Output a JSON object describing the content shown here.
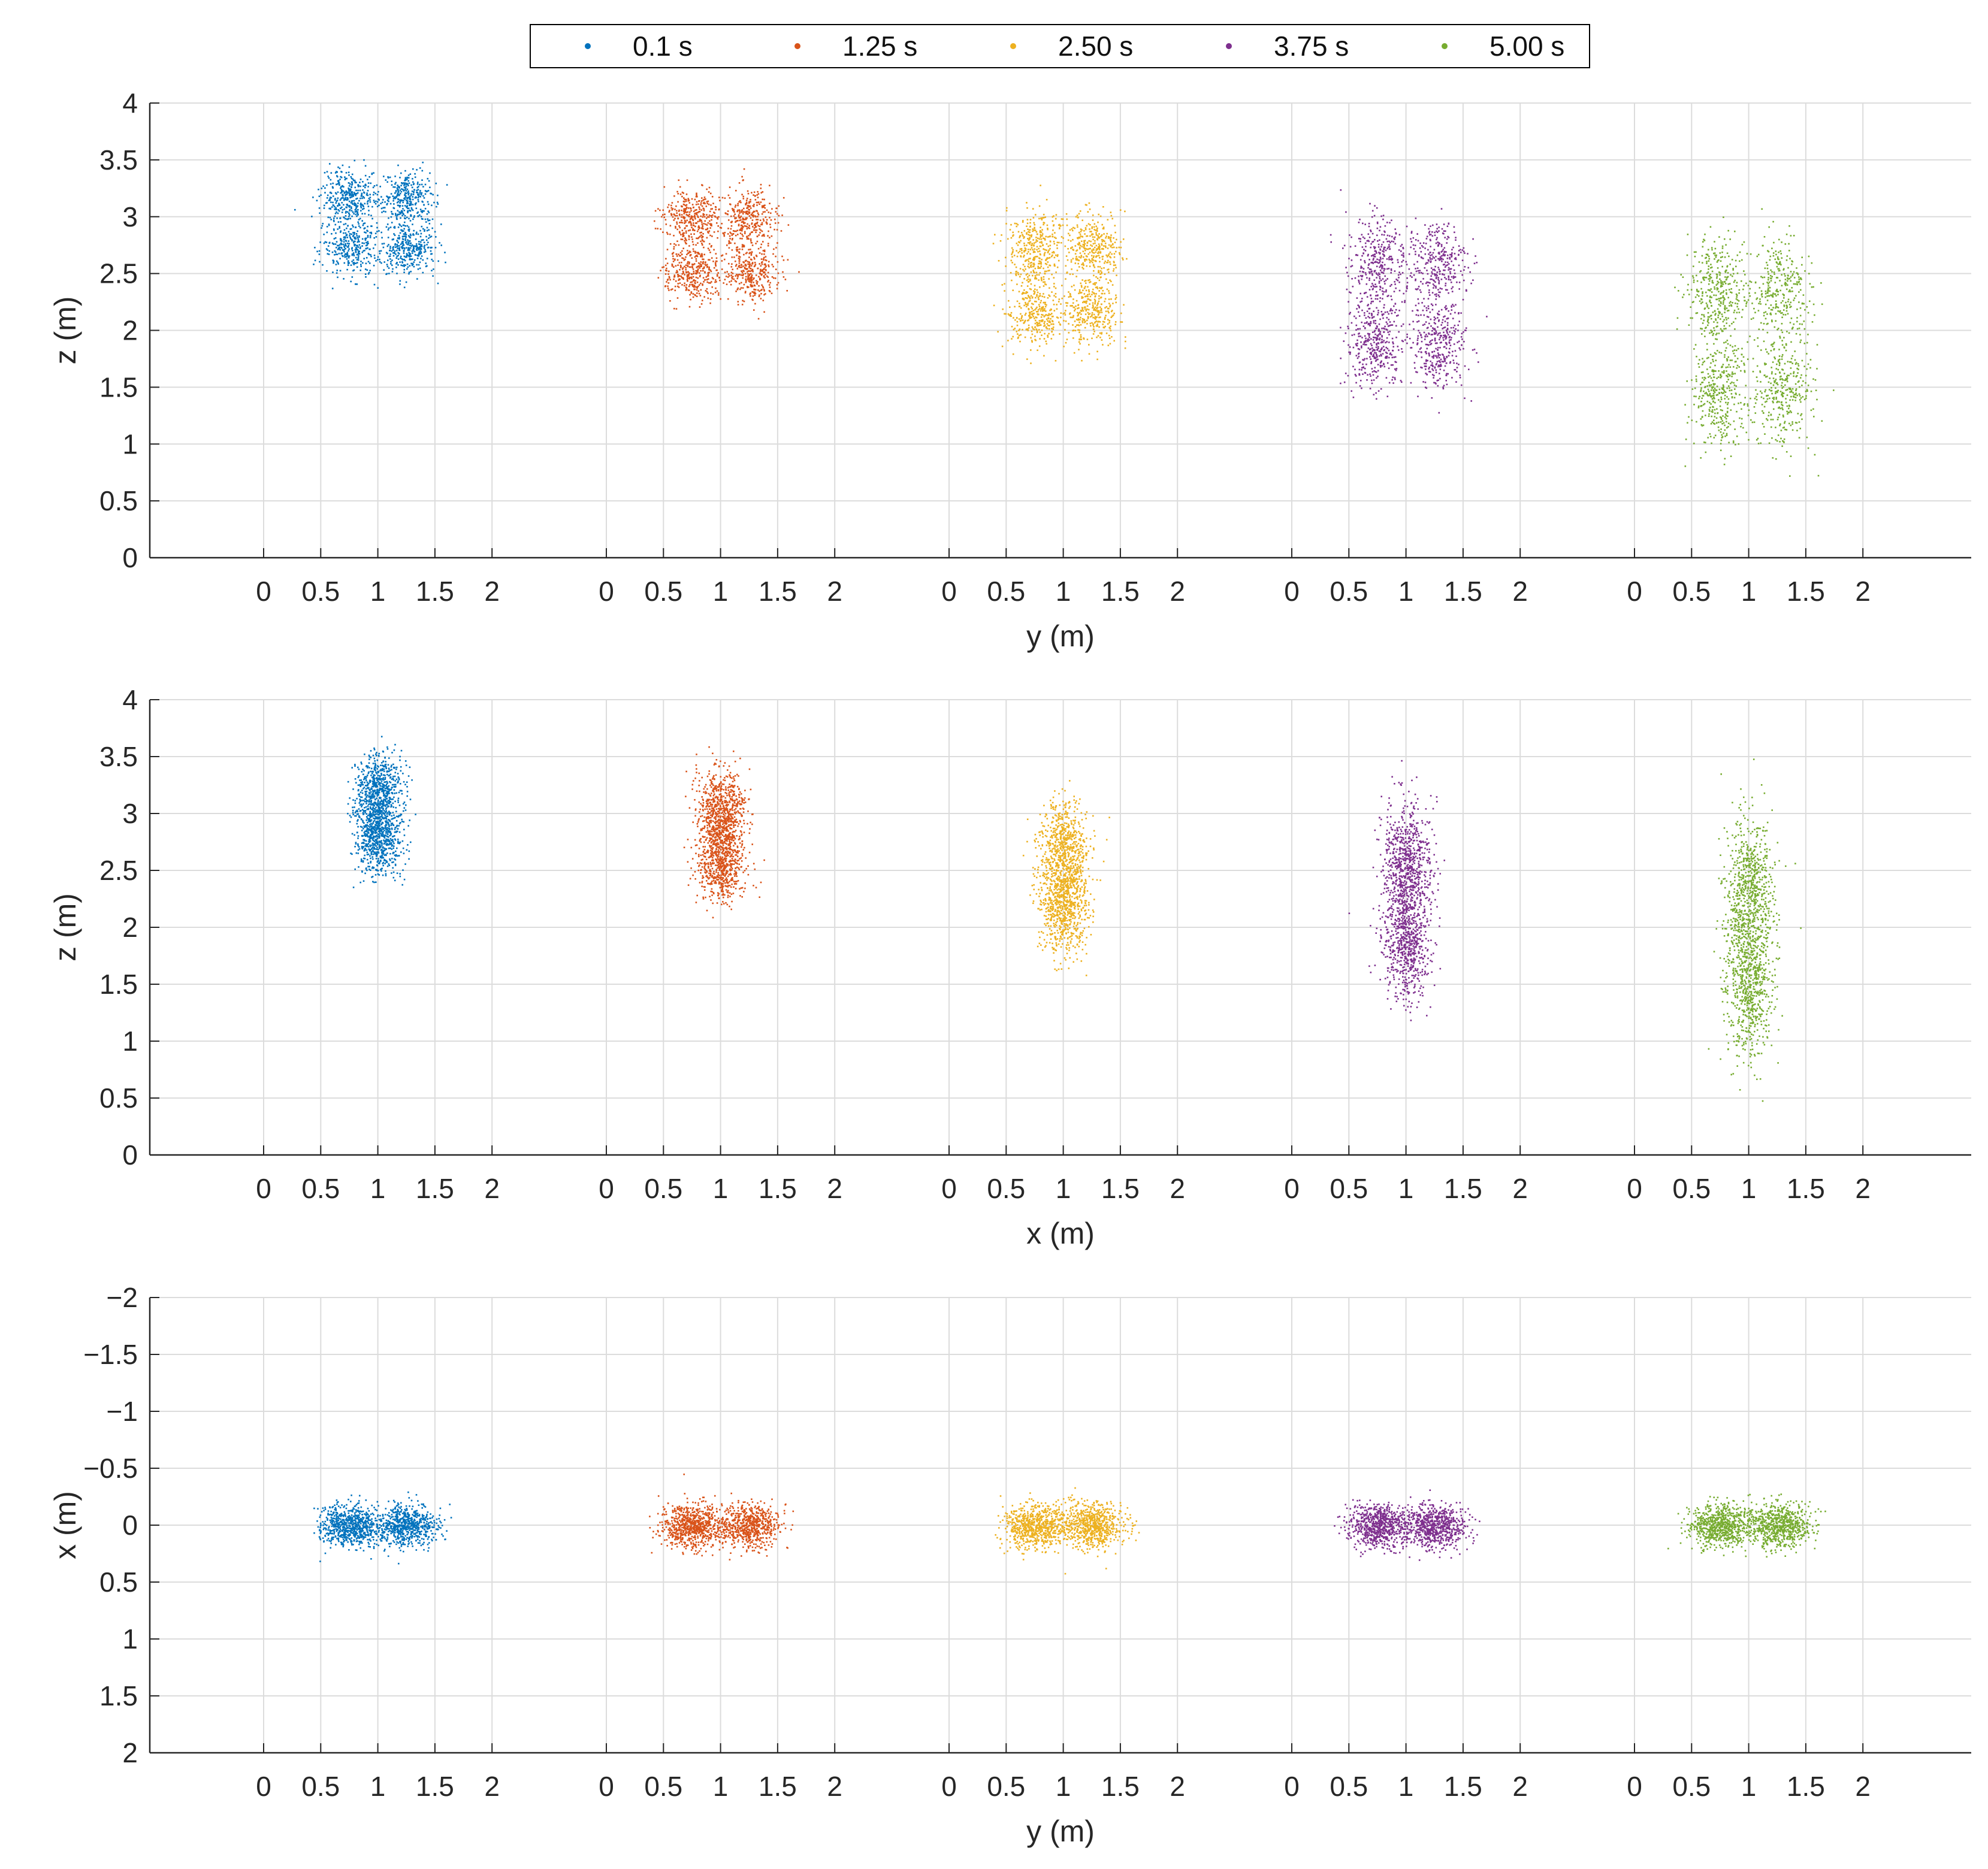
{
  "legend": {
    "entries": [
      {
        "label": "0.1 s",
        "color": "#0072BD"
      },
      {
        "label": "1.25 s",
        "color": "#D95319"
      },
      {
        "label": "2.50 s",
        "color": "#EDB120"
      },
      {
        "label": "3.75 s",
        "color": "#7E2F8E"
      },
      {
        "label": "5.00 s",
        "color": "#77AC30"
      }
    ]
  },
  "chart_data": [
    {
      "type": "scatter",
      "title": "",
      "xlabel": "y (m)",
      "ylabel": "z (m)",
      "grid": true,
      "group_xticks": [
        "0",
        "0.5",
        "1",
        "1.5",
        "2"
      ],
      "yticks": [
        "0",
        "0.5",
        "1",
        "1.5",
        "2",
        "2.5",
        "3",
        "3.5",
        "4"
      ],
      "ylim": [
        0,
        4
      ],
      "y_reversed": false,
      "series": [
        {
          "name": "0.1 s",
          "center_h": 1.0,
          "center_v": 2.95,
          "spread_h": 0.6,
          "spread_v": 0.55,
          "pattern": "quad"
        },
        {
          "name": "1.25 s",
          "center_h": 1.0,
          "center_v": 2.75,
          "spread_h": 0.6,
          "spread_v": 0.6,
          "pattern": "quad"
        },
        {
          "name": "2.50 s",
          "center_h": 1.0,
          "center_v": 2.45,
          "spread_h": 0.6,
          "spread_v": 0.7,
          "pattern": "quad"
        },
        {
          "name": "3.75 s",
          "center_h": 1.0,
          "center_v": 2.25,
          "spread_h": 0.65,
          "spread_v": 0.9,
          "pattern": "quad"
        },
        {
          "name": "5.00 s",
          "center_h": 1.0,
          "center_v": 1.9,
          "spread_h": 0.65,
          "spread_v": 1.1,
          "pattern": "quad"
        }
      ]
    },
    {
      "type": "scatter",
      "title": "",
      "xlabel": "x (m)",
      "ylabel": "z (m)",
      "grid": true,
      "group_xticks": [
        "0",
        "0.5",
        "1",
        "1.5",
        "2"
      ],
      "yticks": [
        "0",
        "0.5",
        "1",
        "1.5",
        "2",
        "2.5",
        "3",
        "3.5",
        "4"
      ],
      "ylim": [
        0,
        4
      ],
      "y_reversed": false,
      "series": [
        {
          "name": "0.1 s",
          "center_h": 1.0,
          "center_v": 3.0,
          "spread_h": 0.28,
          "spread_v": 0.55,
          "pattern": "column"
        },
        {
          "name": "1.25 s",
          "center_h": 1.0,
          "center_v": 2.8,
          "spread_h": 0.3,
          "spread_v": 0.6,
          "pattern": "column"
        },
        {
          "name": "2.50 s",
          "center_h": 1.0,
          "center_v": 2.45,
          "spread_h": 0.3,
          "spread_v": 0.7,
          "pattern": "column"
        },
        {
          "name": "3.75 s",
          "center_h": 1.0,
          "center_v": 2.25,
          "spread_h": 0.3,
          "spread_v": 0.9,
          "pattern": "column"
        },
        {
          "name": "5.00 s",
          "center_h": 1.0,
          "center_v": 1.9,
          "spread_h": 0.3,
          "spread_v": 1.1,
          "pattern": "column"
        }
      ]
    },
    {
      "type": "scatter",
      "title": "",
      "xlabel": "y (m)",
      "ylabel": "x (m)",
      "grid": true,
      "group_xticks": [
        "0",
        "0.5",
        "1",
        "1.5",
        "2"
      ],
      "yticks": [
        "−2",
        "−1.5",
        "−1",
        "−0.5",
        "0",
        "0.5",
        "1",
        "1.5",
        "2"
      ],
      "ylim": [
        -2,
        2
      ],
      "y_reversed": true,
      "series": [
        {
          "name": "0.1 s",
          "center_h": 1.0,
          "center_v": 0.0,
          "spread_h": 0.6,
          "spread_v": 0.25,
          "pattern": "row"
        },
        {
          "name": "1.25 s",
          "center_h": 1.0,
          "center_v": 0.0,
          "spread_h": 0.6,
          "spread_v": 0.27,
          "pattern": "row"
        },
        {
          "name": "2.50 s",
          "center_h": 1.0,
          "center_v": 0.0,
          "spread_h": 0.62,
          "spread_v": 0.28,
          "pattern": "row"
        },
        {
          "name": "3.75 s",
          "center_h": 1.0,
          "center_v": 0.0,
          "spread_h": 0.62,
          "spread_v": 0.27,
          "pattern": "row"
        },
        {
          "name": "5.00 s",
          "center_h": 1.0,
          "center_v": 0.0,
          "spread_h": 0.62,
          "spread_v": 0.27,
          "pattern": "row"
        }
      ]
    }
  ]
}
